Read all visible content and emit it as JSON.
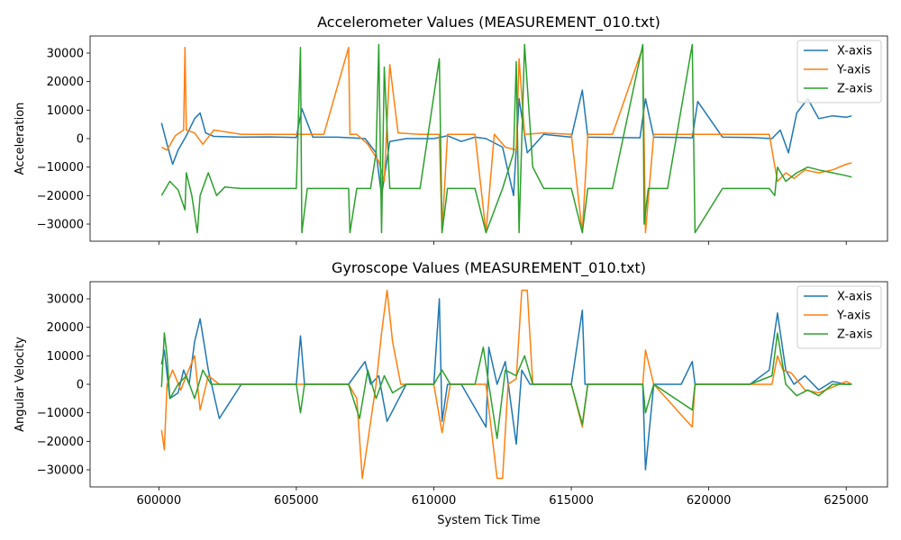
{
  "chart_data": [
    {
      "type": "line",
      "title": "Accelerometer Values (MEASUREMENT_010.txt)",
      "xlabel": "",
      "ylabel": "Acceleration",
      "xlim": [
        597500,
        626500
      ],
      "ylim": [
        -36000,
        36000
      ],
      "xticks": [
        600000,
        605000,
        610000,
        615000,
        620000,
        625000
      ],
      "xticklabels": [
        "",
        "",
        "",
        "",
        "",
        ""
      ],
      "yticks": [
        -30000,
        -20000,
        -10000,
        0,
        10000,
        20000,
        30000
      ],
      "yticklabels": [
        "−30000",
        "−20000",
        "−10000",
        "0",
        "10000",
        "20000",
        "30000"
      ],
      "grid": false,
      "legend": "top-right",
      "series": [
        {
          "name": "X-axis",
          "color": "#1f77b4",
          "x": [
            600100,
            600300,
            600500,
            600700,
            601000,
            601300,
            601500,
            601700,
            602000,
            603000,
            604000,
            605000,
            605200,
            605600,
            606500,
            607000,
            607500,
            607900,
            608100,
            608400,
            609000,
            610000,
            610500,
            611000,
            611500,
            611900,
            612500,
            612900,
            613100,
            613400,
            614000,
            615000,
            615400,
            615600,
            616500,
            617500,
            617700,
            618000,
            619000,
            619400,
            619600,
            620500,
            621500,
            622300,
            622600,
            622900,
            623200,
            623600,
            624000,
            624500,
            625000,
            625200
          ],
          "y": [
            5500,
            -2000,
            -9000,
            -4000,
            1000,
            7000,
            9000,
            2000,
            800,
            500,
            600,
            400,
            10500,
            500,
            500,
            300,
            0,
            -5000,
            -20000,
            -1000,
            0,
            0,
            1000,
            -1000,
            500,
            0,
            -3000,
            -20000,
            14000,
            -5000,
            1500,
            500,
            17000,
            500,
            400,
            300,
            14000,
            500,
            400,
            300,
            13000,
            500,
            400,
            0,
            3000,
            -5000,
            9000,
            14000,
            7000,
            8000,
            7500,
            8000
          ]
        },
        {
          "name": "Y-axis",
          "color": "#ff7f0e",
          "x": [
            600100,
            600300,
            600600,
            600900,
            600950,
            601000,
            601300,
            601600,
            602000,
            603000,
            604000,
            605000,
            605200,
            606000,
            606900,
            606950,
            607200,
            607600,
            608000,
            608200,
            608400,
            608700,
            609500,
            610200,
            610300,
            610500,
            611000,
            611500,
            611900,
            612200,
            612600,
            613000,
            613100,
            613300,
            614000,
            615000,
            615400,
            615600,
            616500,
            617600,
            617700,
            618000,
            619400,
            619500,
            620500,
            621500,
            622200,
            622500,
            622800,
            623100,
            623500,
            624000,
            624500,
            625000,
            625200
          ],
          "y": [
            -3000,
            -4000,
            1000,
            3000,
            32000,
            3000,
            2000,
            -2000,
            3000,
            1500,
            1500,
            1500,
            1500,
            1500,
            32000,
            1500,
            1500,
            -2000,
            -8000,
            -15000,
            26000,
            2000,
            1500,
            1500,
            -33000,
            1500,
            1500,
            1500,
            -33000,
            1500,
            -3000,
            -4000,
            28000,
            1500,
            2000,
            1500,
            -33000,
            1500,
            1500,
            32000,
            -33000,
            1500,
            1500,
            1500,
            1500,
            1500,
            1500,
            -15000,
            -12000,
            -14000,
            -11000,
            -12000,
            -11000,
            -9000,
            -8500
          ]
        },
        {
          "name": "Z-axis",
          "color": "#2ca02c",
          "x": [
            600100,
            600400,
            600700,
            600950,
            601000,
            601200,
            601400,
            601500,
            601800,
            602100,
            602400,
            603000,
            604000,
            605000,
            605150,
            605200,
            605400,
            606000,
            606900,
            606950,
            607200,
            607700,
            607900,
            608000,
            608100,
            608200,
            608400,
            608800,
            609500,
            610200,
            610300,
            610500,
            611000,
            611500,
            611900,
            612500,
            612900,
            613000,
            613100,
            613300,
            613600,
            614000,
            615000,
            615400,
            615600,
            616500,
            617600,
            617650,
            617800,
            618500,
            619400,
            619500,
            620500,
            621500,
            622200,
            622400,
            622500,
            622800,
            623200,
            623600,
            624000,
            624500,
            625000,
            625200
          ],
          "y": [
            -20000,
            -15000,
            -18000,
            -25000,
            -12000,
            -20000,
            -33000,
            -20000,
            -12000,
            -20000,
            -17000,
            -17500,
            -17500,
            -17500,
            32000,
            -33000,
            -17500,
            -17500,
            -17500,
            -33000,
            -17500,
            -17500,
            -5000,
            33000,
            -33000,
            25000,
            -17500,
            -17500,
            -17500,
            28000,
            -33000,
            -17500,
            -17500,
            -17500,
            -33000,
            -17500,
            -5000,
            27000,
            -33000,
            33000,
            -10000,
            -17500,
            -17500,
            -33000,
            -17500,
            -17500,
            33000,
            -30000,
            -17500,
            -17500,
            33000,
            -33000,
            -17500,
            -17500,
            -17500,
            -20000,
            -10000,
            -15000,
            -12000,
            -10000,
            -11000,
            -12000,
            -13000,
            -13500
          ]
        }
      ]
    },
    {
      "type": "line",
      "title": "Gyroscope Values (MEASUREMENT_010.txt)",
      "xlabel": "System Tick Time",
      "ylabel": "Angular Velocity",
      "xlim": [
        597500,
        626500
      ],
      "ylim": [
        -36000,
        36000
      ],
      "xticks": [
        600000,
        605000,
        610000,
        615000,
        620000,
        625000
      ],
      "xticklabels": [
        "600000",
        "605000",
        "610000",
        "615000",
        "620000",
        "625000"
      ],
      "yticks": [
        -30000,
        -20000,
        -10000,
        0,
        10000,
        20000,
        30000
      ],
      "yticklabels": [
        "−30000",
        "−20000",
        "−10000",
        "0",
        "10000",
        "20000",
        "30000"
      ],
      "grid": false,
      "legend": "top-right",
      "series": [
        {
          "name": "X-axis",
          "color": "#1f77b4",
          "x": [
            600100,
            600200,
            600400,
            600700,
            600900,
            601100,
            601300,
            601500,
            601800,
            602200,
            603000,
            604000,
            605000,
            605150,
            605300,
            606000,
            606900,
            607500,
            607700,
            608000,
            608300,
            609000,
            610000,
            610200,
            610300,
            610500,
            611000,
            611900,
            612000,
            612300,
            612600,
            613000,
            613200,
            613500,
            614000,
            615000,
            615400,
            615500,
            616500,
            617600,
            617700,
            618000,
            619000,
            619400,
            619500,
            620500,
            621500,
            622200,
            622500,
            622800,
            623100,
            623500,
            624000,
            624500,
            625000,
            625200
          ],
          "y": [
            7000,
            12000,
            -5000,
            -3000,
            5000,
            0,
            15000,
            23000,
            5000,
            -12000,
            0,
            0,
            0,
            17000,
            0,
            0,
            0,
            8000,
            0,
            3000,
            -13000,
            0,
            0,
            30000,
            -13000,
            0,
            0,
            -15000,
            13000,
            0,
            8000,
            -21000,
            5000,
            0,
            0,
            0,
            26000,
            0,
            0,
            0,
            -30000,
            0,
            0,
            8000,
            0,
            0,
            0,
            5000,
            25000,
            5000,
            0,
            3000,
            -2000,
            1000,
            0,
            0
          ]
        },
        {
          "name": "Y-axis",
          "color": "#ff7f0e",
          "x": [
            600100,
            600200,
            600300,
            600500,
            600800,
            601000,
            601300,
            601500,
            601800,
            602200,
            603000,
            604000,
            605000,
            605200,
            606000,
            606900,
            607200,
            607400,
            607600,
            607900,
            608100,
            608300,
            608500,
            608800,
            609500,
            610000,
            610300,
            610600,
            611500,
            611900,
            612300,
            612500,
            612700,
            613000,
            613200,
            613400,
            613600,
            614000,
            615000,
            615400,
            615600,
            616500,
            617600,
            617700,
            618000,
            619400,
            619500,
            620500,
            621500,
            622300,
            622500,
            622700,
            623000,
            623500,
            624000,
            624500,
            625000,
            625200
          ],
          "y": [
            -16000,
            -23000,
            0,
            5000,
            -2000,
            3000,
            10000,
            -9000,
            3000,
            0,
            0,
            0,
            0,
            0,
            0,
            0,
            -5000,
            -33000,
            -20000,
            0,
            18000,
            33000,
            15000,
            0,
            0,
            0,
            -17000,
            0,
            0,
            0,
            -33000,
            -33000,
            0,
            2000,
            33000,
            33000,
            0,
            0,
            0,
            -15000,
            0,
            0,
            0,
            12000,
            0,
            -15000,
            0,
            0,
            0,
            0,
            10000,
            5000,
            4000,
            -2000,
            -3000,
            -1000,
            1000,
            0
          ]
        },
        {
          "name": "Z-axis",
          "color": "#2ca02c",
          "x": [
            600100,
            600200,
            600300,
            600400,
            600700,
            601000,
            601300,
            601600,
            601900,
            602200,
            603000,
            604000,
            605000,
            605150,
            605300,
            606000,
            606900,
            607300,
            607600,
            607900,
            608200,
            608500,
            609000,
            610000,
            610300,
            610600,
            611500,
            611800,
            612000,
            612300,
            612600,
            613000,
            613300,
            613600,
            614000,
            615000,
            615400,
            615600,
            616500,
            617600,
            617700,
            618000,
            619400,
            619500,
            620500,
            621500,
            622300,
            622500,
            622800,
            623200,
            623600,
            624000,
            624500,
            625000,
            625200
          ],
          "y": [
            -1000,
            18000,
            10000,
            -5000,
            0,
            3000,
            -5000,
            5000,
            0,
            0,
            0,
            0,
            0,
            -10000,
            0,
            0,
            0,
            -12000,
            5000,
            -5000,
            3000,
            -3000,
            0,
            0,
            5000,
            0,
            0,
            13000,
            0,
            -19000,
            5000,
            3000,
            10000,
            0,
            0,
            0,
            -14000,
            0,
            0,
            0,
            -10000,
            0,
            -9000,
            0,
            0,
            0,
            3000,
            18000,
            0,
            -4000,
            -2000,
            -4000,
            0,
            0,
            0
          ]
        }
      ]
    }
  ]
}
